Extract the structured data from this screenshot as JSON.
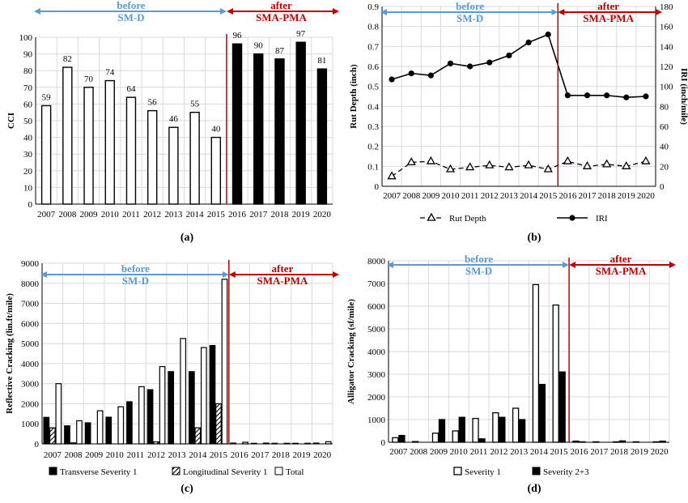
{
  "colors": {
    "before": "#5b9bd5",
    "after": "#c00000",
    "grid": "#d9d9d9",
    "bar_dark": "#000000",
    "bar_light": "#ffffff"
  },
  "chart_data": [
    {
      "id": "a",
      "type": "bar",
      "panel_label": "(a)",
      "ylabel": "CCI",
      "ylim": [
        0,
        100
      ],
      "yticks": [
        0,
        10,
        20,
        30,
        40,
        50,
        60,
        70,
        80,
        90,
        100
      ],
      "categories": [
        "2007",
        "2008",
        "2009",
        "2010",
        "2011",
        "2012",
        "2013",
        "2014",
        "2015",
        "2016",
        "2017",
        "2018",
        "2019",
        "2020"
      ],
      "values": [
        59,
        82,
        70,
        74,
        64,
        56,
        46,
        55,
        40,
        96,
        90,
        87,
        97,
        81
      ],
      "data_labels": [
        "59",
        "82",
        "70",
        "74",
        "64",
        "56",
        "46",
        "55",
        "40",
        "96",
        "90",
        "87",
        "97",
        "81"
      ],
      "before": {
        "line1": "before",
        "line2": "SM-D"
      },
      "after": {
        "line1": "after",
        "line2": "SMA-PMA"
      },
      "grid": true
    },
    {
      "id": "b",
      "type": "line",
      "panel_label": "(b)",
      "ylabel": "Rut Depth (inch)",
      "ylim": [
        0,
        0.9
      ],
      "yticks": [
        "0",
        "0.1",
        "0.2",
        "0.3",
        "0.4",
        "0.5",
        "0.6",
        "0.7",
        "0.8",
        "0.9"
      ],
      "y2label": "IRI (inch/mile)",
      "y2lim": [
        0,
        180
      ],
      "y2ticks": [
        "0",
        "20",
        "40",
        "60",
        "80",
        "100",
        "120",
        "140",
        "160",
        "180"
      ],
      "categories": [
        "2007",
        "2008",
        "2009",
        "2010",
        "2011",
        "2012",
        "2013",
        "2014",
        "2015",
        "2016",
        "2017",
        "2018",
        "2019",
        "2020"
      ],
      "series": [
        {
          "name": "Rut Depth",
          "axis": "left",
          "values": [
            0.05,
            0.12,
            0.125,
            0.085,
            0.095,
            0.105,
            0.095,
            0.105,
            0.085,
            0.125,
            0.1,
            0.11,
            0.1,
            0.125
          ]
        },
        {
          "name": "IRI",
          "axis": "right",
          "values": [
            107,
            113,
            111,
            123,
            120,
            124,
            131,
            144,
            152,
            91,
            91,
            91,
            89,
            90
          ]
        }
      ],
      "before": {
        "line1": "before",
        "line2": "SM-D"
      },
      "after": {
        "line1": "after",
        "line2": "SMA-PMA"
      },
      "legend_position": "bottom",
      "grid": true
    },
    {
      "id": "c",
      "type": "bar",
      "panel_label": "(c)",
      "ylabel": "Reflective Cracking (lin.ft/mile)",
      "ylim": [
        0,
        9000
      ],
      "yticks": [
        "0",
        "1000",
        "2000",
        "3000",
        "4000",
        "5000",
        "6000",
        "7000",
        "8000",
        "9000"
      ],
      "categories": [
        "2007",
        "2008",
        "2009",
        "2010",
        "2011",
        "2012",
        "2013",
        "2014",
        "2015",
        "2016",
        "2017",
        "2018",
        "2019",
        "2020"
      ],
      "series": [
        {
          "name": "Transverse Severity 1",
          "values": [
            1320,
            900,
            1050,
            1330,
            2100,
            2700,
            3600,
            3600,
            4900,
            40,
            30,
            30,
            30,
            40
          ]
        },
        {
          "name": "Longitudinal Severity 1",
          "values": [
            800,
            50,
            0,
            0,
            0,
            100,
            0,
            800,
            2000,
            0,
            0,
            0,
            0,
            0
          ]
        },
        {
          "name": "Total",
          "values": [
            3000,
            1150,
            1650,
            1850,
            2850,
            3850,
            5250,
            4800,
            8200,
            80,
            40,
            30,
            30,
            110
          ]
        }
      ],
      "before": {
        "line1": "before",
        "line2": "SM-D"
      },
      "after": {
        "line1": "after",
        "line2": "SMA-PMA"
      },
      "legend_position": "bottom",
      "grid": true
    },
    {
      "id": "d",
      "type": "bar",
      "panel_label": "(d)",
      "ylabel": "Alligator Cracking (sf/mile)",
      "ylim": [
        0,
        8000
      ],
      "yticks": [
        "0",
        "1000",
        "2000",
        "3000",
        "4000",
        "5000",
        "6000",
        "7000",
        "8000"
      ],
      "categories": [
        "2007",
        "2008",
        "2009",
        "2010",
        "2011",
        "2012",
        "2013",
        "2014",
        "2015",
        "2016",
        "2017",
        "2018",
        "2019",
        "2020"
      ],
      "series": [
        {
          "name": "Severity 1",
          "values": [
            200,
            30,
            400,
            500,
            1050,
            1300,
            1500,
            6950,
            6050,
            50,
            20,
            20,
            20,
            20
          ]
        },
        {
          "name": "Severity 2+3",
          "values": [
            300,
            0,
            1000,
            1100,
            150,
            1100,
            1000,
            2550,
            3100,
            20,
            0,
            60,
            0,
            50
          ]
        }
      ],
      "before": {
        "line1": "before",
        "line2": "SM-D"
      },
      "after": {
        "line1": "after",
        "line2": "SMA-PMA"
      },
      "legend_position": "bottom",
      "grid": true
    }
  ]
}
